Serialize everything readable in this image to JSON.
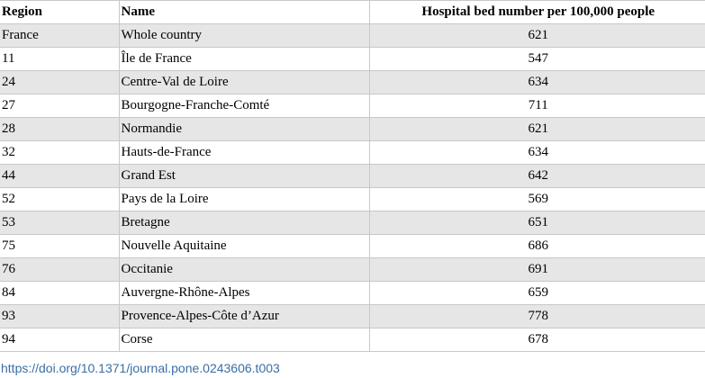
{
  "table": {
    "headers": {
      "region": "Region",
      "name": "Name",
      "beds": "Hospital bed number per 100,000 people"
    },
    "rows": [
      {
        "region": "France",
        "name": "Whole country",
        "beds": "621"
      },
      {
        "region": "11",
        "name": "Île de France",
        "beds": "547"
      },
      {
        "region": "24",
        "name": "Centre-Val de Loire",
        "beds": "634"
      },
      {
        "region": "27",
        "name": "Bourgogne-Franche-Comté",
        "beds": "711"
      },
      {
        "region": "28",
        "name": "Normandie",
        "beds": "621"
      },
      {
        "region": "32",
        "name": "Hauts-de-France",
        "beds": "634"
      },
      {
        "region": "44",
        "name": "Grand Est",
        "beds": "642"
      },
      {
        "region": "52",
        "name": "Pays de la Loire",
        "beds": "569"
      },
      {
        "region": "53",
        "name": "Bretagne",
        "beds": "651"
      },
      {
        "region": "75",
        "name": "Nouvelle Aquitaine",
        "beds": "686"
      },
      {
        "region": "76",
        "name": "Occitanie",
        "beds": "691"
      },
      {
        "region": "84",
        "name": "Auvergne-Rhône-Alpes",
        "beds": "659"
      },
      {
        "region": "93",
        "name": "Provence-Alpes-Côte d’Azur",
        "beds": "778"
      },
      {
        "region": "94",
        "name": "Corse",
        "beds": "678"
      }
    ]
  },
  "footer": {
    "doi": "https://doi.org/10.1371/journal.pone.0243606.t003"
  },
  "colors": {
    "stripe": "#e6e6e6",
    "border": "#c8c8c8",
    "link": "#3a6ea5"
  }
}
